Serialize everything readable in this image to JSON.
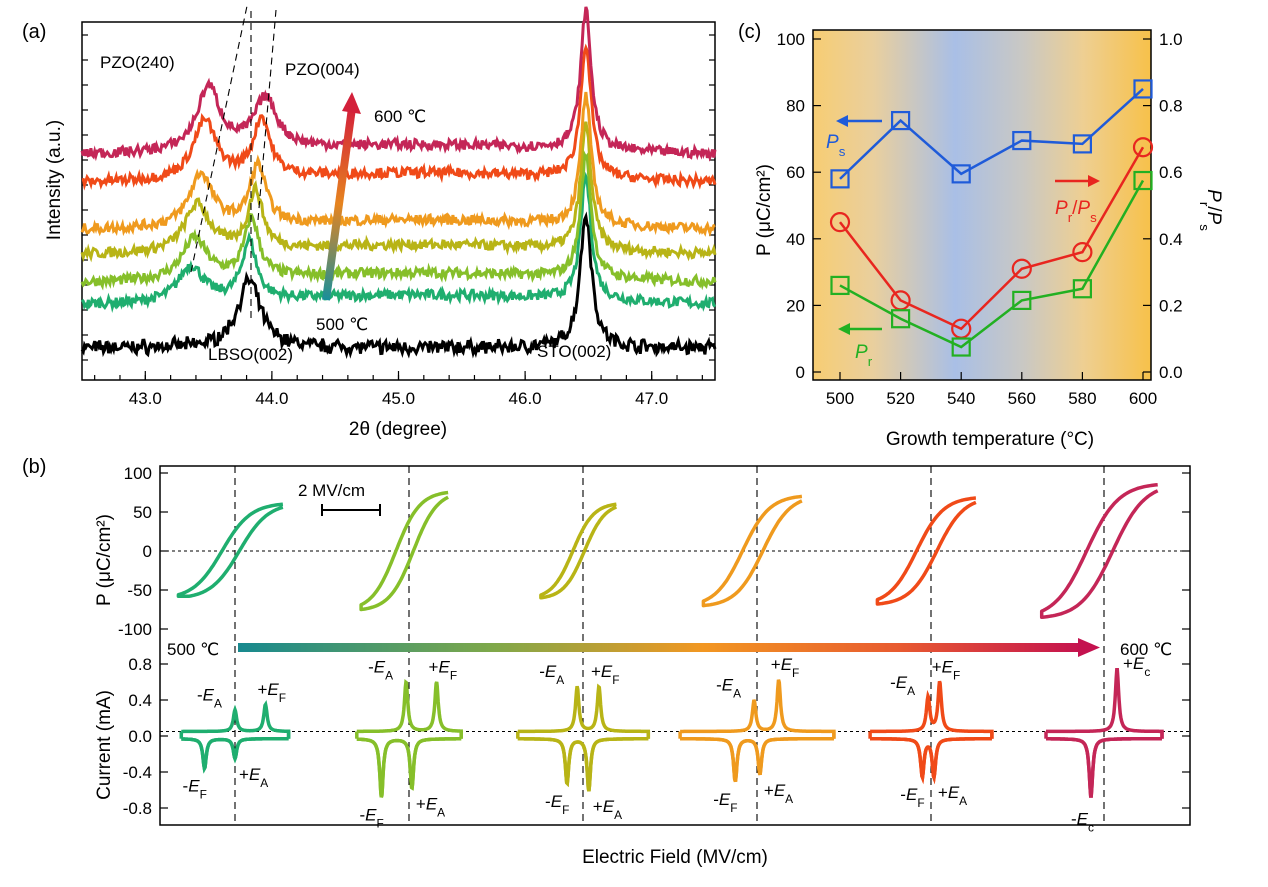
{
  "colors": {
    "t500": "#1fae6f",
    "t520": "#86bf2a",
    "t540": "#b8b416",
    "t560": "#ef9a1e",
    "t580": "#f04a18",
    "t600": "#c42657",
    "lbso": "#000000",
    "ps": "#1f5bd9",
    "pr_ratio": "#e8261f",
    "pr": "#22b022"
  },
  "labels": {
    "panel_a": "(a)",
    "panel_b": "(b)",
    "panel_c": "(c)",
    "temp_high": "600 ℃",
    "temp_low": "500 ℃",
    "scale_bar": "2 MV/cm",
    "shared_xlabel": "Electric Field (MV/cm)"
  },
  "chart_data": [
    {
      "id": "a",
      "type": "line",
      "xlabel": "2θ (degree)",
      "ylabel": "Intensity (a.u.)",
      "xlim": [
        42.5,
        47.5
      ],
      "xticks": [
        "43.0",
        "44.0",
        "45.0",
        "46.0",
        "47.0"
      ],
      "peak_labels": [
        "PZO(240)",
        "PZO(004)",
        "LBSO(002)",
        "STO(002)"
      ],
      "series": [
        {
          "name": "LBSO",
          "color_key": "lbso",
          "peaks": [
            [
              43.82,
              2.4,
              0.11
            ],
            [
              46.48,
              4.8,
              0.055
            ]
          ]
        },
        {
          "name": "500 ℃",
          "color_key": "t500",
          "peaks": [
            [
              43.36,
              1.3,
              0.12
            ],
            [
              43.82,
              2.1,
              0.07
            ],
            [
              46.48,
              4.4,
              0.05
            ]
          ]
        },
        {
          "name": "520 ℃",
          "color_key": "t520",
          "peaks": [
            [
              43.39,
              1.5,
              0.12
            ],
            [
              43.84,
              2.1,
              0.07
            ],
            [
              46.48,
              4.4,
              0.05
            ]
          ]
        },
        {
          "name": "540 ℃",
          "color_key": "t540",
          "peaks": [
            [
              43.41,
              1.7,
              0.12
            ],
            [
              43.87,
              2.1,
              0.07
            ],
            [
              46.48,
              4.5,
              0.05
            ]
          ]
        },
        {
          "name": "560 ℃",
          "color_key": "t560",
          "peaks": [
            [
              43.44,
              1.9,
              0.11
            ],
            [
              43.89,
              2.1,
              0.075
            ],
            [
              46.48,
              4.6,
              0.05
            ]
          ]
        },
        {
          "name": "580 ℃",
          "color_key": "t580",
          "peaks": [
            [
              43.47,
              2.1,
              0.11
            ],
            [
              43.92,
              2.1,
              0.08
            ],
            [
              46.48,
              4.8,
              0.05
            ]
          ]
        },
        {
          "name": "600 ℃",
          "color_key": "t600",
          "peaks": [
            [
              43.5,
              2.3,
              0.11
            ],
            [
              43.95,
              1.8,
              0.11
            ],
            [
              46.48,
              5.0,
              0.05
            ]
          ]
        }
      ]
    },
    {
      "id": "c",
      "type": "line",
      "xlabel": "Growth temperature (°C)",
      "ylabel": "P (μC/cm²)",
      "y2label": "Pr/Ps",
      "x": [
        500,
        520,
        540,
        560,
        580,
        600
      ],
      "ylim": [
        0,
        100
      ],
      "y2lim": [
        0,
        1
      ],
      "xticks": [
        "500",
        "520",
        "540",
        "560",
        "580",
        "600"
      ],
      "yticks": [
        "0",
        "20",
        "40",
        "60",
        "80",
        "100"
      ],
      "y2ticks": [
        "0.0",
        "0.2",
        "0.4",
        "0.6",
        "0.8",
        "1.0"
      ],
      "series": [
        {
          "name": "Ps",
          "axis": "left",
          "marker": "square",
          "color_key": "ps",
          "values": [
            58,
            75.5,
            59.5,
            69.5,
            68.5,
            85
          ]
        },
        {
          "name": "Pr/Ps",
          "axis": "right",
          "marker": "circle",
          "color_key": "pr_ratio",
          "values": [
            0.45,
            0.215,
            0.13,
            0.31,
            0.36,
            0.675
          ]
        },
        {
          "name": "Pr",
          "axis": "left",
          "marker": "square",
          "color_key": "pr",
          "values": [
            26,
            16,
            7.5,
            21.5,
            25,
            57.5
          ]
        }
      ],
      "legend_labels": [
        "Ps",
        "Pr/Ps",
        "Pr"
      ]
    },
    {
      "id": "b-top",
      "type": "line",
      "ylabel": "P (μC/cm²)",
      "ylim": [
        -100,
        100
      ],
      "yticks": [
        "100",
        "50",
        "0",
        "-50",
        "-100"
      ],
      "loops": [
        {
          "temp": "500 ℃",
          "color_key": "t500",
          "p_max": 60,
          "p_min": -58,
          "pr": 26,
          "ec": 0.3,
          "width": 1.8
        },
        {
          "temp": "520 ℃",
          "color_key": "t520",
          "p_max": 75,
          "p_min": -75,
          "pr": 16,
          "ec": 0.3,
          "width": 1.5
        },
        {
          "temp": "540 ℃",
          "color_key": "t540",
          "p_max": 60,
          "p_min": -60,
          "pr": 8,
          "ec": 0.2,
          "width": 1.3
        },
        {
          "temp": "560 ℃",
          "color_key": "t560",
          "p_max": 70,
          "p_min": -70,
          "pr": 22,
          "ec": 0.35,
          "width": 1.7
        },
        {
          "temp": "580 ℃",
          "color_key": "t580",
          "p_max": 68,
          "p_min": -68,
          "pr": 25,
          "ec": 0.35,
          "width": 1.7
        },
        {
          "temp": "600 ℃",
          "color_key": "t600",
          "p_max": 85,
          "p_min": -85,
          "pr": 58,
          "ec": 0.45,
          "width": 2.0
        }
      ]
    },
    {
      "id": "b-bottom",
      "type": "line",
      "ylabel": "Current (mA)",
      "ylim": [
        -0.8,
        0.8
      ],
      "yticks": [
        "0.8",
        "0.4",
        "0.0",
        "-0.4",
        "-0.8"
      ],
      "loops": [
        {
          "temp": "500 ℃",
          "color_key": "t500",
          "peaks_up": [
            [
              0.0,
              0.24
            ],
            [
              1.05,
              0.3
            ]
          ],
          "peaks_down": [
            [
              -1.05,
              -0.33
            ],
            [
              0.0,
              -0.22
            ]
          ],
          "labels": [
            "-EA",
            "+EF",
            "-EF",
            "+EA"
          ]
        },
        {
          "temp": "520 ℃",
          "color_key": "t520",
          "peaks_up": [
            [
              -0.1,
              0.55
            ],
            [
              0.95,
              0.55
            ]
          ],
          "peaks_down": [
            [
              -0.95,
              -0.65
            ],
            [
              0.1,
              -0.55
            ]
          ],
          "labels": [
            "-EA",
            "+EF",
            "-EF",
            "+EA"
          ]
        },
        {
          "temp": "540 ℃",
          "color_key": "t540",
          "peaks_up": [
            [
              -0.2,
              0.5
            ],
            [
              0.55,
              0.5
            ]
          ],
          "peaks_down": [
            [
              -0.55,
              -0.5
            ],
            [
              0.2,
              -0.58
            ]
          ],
          "labels": [
            "-EA",
            "+EF",
            "-EF",
            "+EA"
          ]
        },
        {
          "temp": "560 ℃",
          "color_key": "t560",
          "peaks_up": [
            [
              -0.1,
              0.35
            ],
            [
              0.75,
              0.58
            ]
          ],
          "peaks_down": [
            [
              -0.75,
              -0.48
            ],
            [
              0.1,
              -0.4
            ]
          ],
          "labels": [
            "-EA",
            "+EF",
            "-EF",
            "+EA"
          ]
        },
        {
          "temp": "580 ℃",
          "color_key": "t580",
          "peaks_up": [
            [
              -0.1,
              0.38
            ],
            [
              0.3,
              0.55
            ]
          ],
          "peaks_down": [
            [
              -0.3,
              -0.42
            ],
            [
              0.1,
              -0.42
            ]
          ],
          "labels": [
            "-EA",
            "+EF",
            "-EF",
            "+EA"
          ]
        },
        {
          "temp": "600 ℃",
          "color_key": "t600",
          "peaks_up": [
            [
              0.45,
              0.7
            ]
          ],
          "peaks_down": [
            [
              -0.45,
              -0.65
            ]
          ],
          "labels": [
            "+Ec",
            "-Ec"
          ]
        }
      ]
    }
  ]
}
